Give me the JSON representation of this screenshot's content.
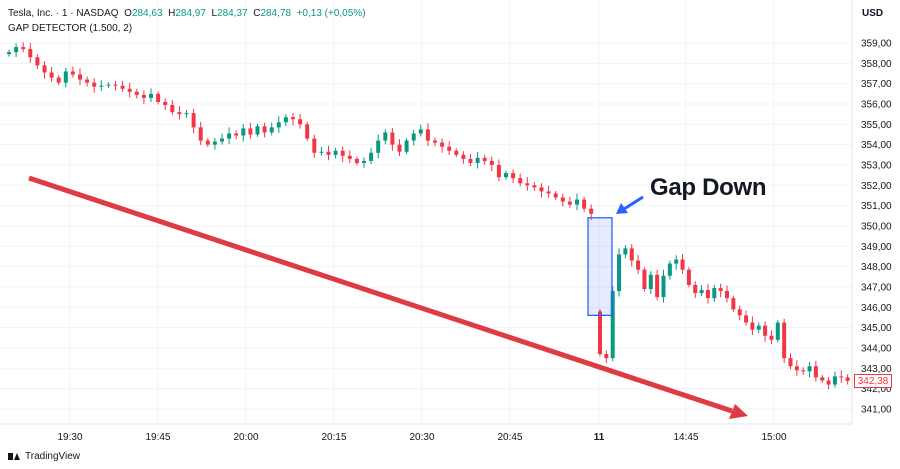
{
  "legend": {
    "symbol": "Tesla, Inc. · 1 · NASDAQ",
    "open_label": "O",
    "open": "284,63",
    "high_label": "H",
    "high": "284,97",
    "low_label": "L",
    "low": "284,37",
    "close_label": "C",
    "close": "284,78",
    "change": "+0,13 (+0,05%)",
    "indicator": "GAP DETECTOR (1.500, 2)"
  },
  "currency": "USD",
  "brand": "TradingView",
  "annotation": "Gap Down",
  "last_price_label": "342,38",
  "colors": {
    "up": "#089981",
    "down": "#f23645",
    "trend_arrow": "#e03a43",
    "gap_box": "#2962ff",
    "callout_arrow": "#2962ff"
  },
  "chart_data": {
    "type": "candlestick",
    "y_ticks": [
      "359,00",
      "358,00",
      "357,00",
      "356,00",
      "355,00",
      "354,00",
      "353,00",
      "352,00",
      "351,00",
      "350,00",
      "349,00",
      "348,00",
      "347,00",
      "346,00",
      "345,00",
      "344,00",
      "343,00",
      "342,00",
      "341,00"
    ],
    "y_range": [
      340.4,
      360.2
    ],
    "x_ticks": [
      "19:30",
      "19:45",
      "20:00",
      "20:15",
      "20:30",
      "20:45",
      "11",
      "14:45",
      "15:00"
    ],
    "x_tick_bold": [
      false,
      false,
      false,
      false,
      false,
      false,
      true,
      false,
      false
    ],
    "session1_closes": [
      358.55,
      358.8,
      358.7,
      358.3,
      357.9,
      357.55,
      357.3,
      357.05,
      357.6,
      357.45,
      357.2,
      357.05,
      356.85,
      356.9,
      356.95,
      356.9,
      356.75,
      356.6,
      356.45,
      356.3,
      356.5,
      356.1,
      355.95,
      355.6,
      355.5,
      355.55,
      354.85,
      354.2,
      354.0,
      354.15,
      354.3,
      354.55,
      354.45,
      354.8,
      354.5,
      354.9,
      354.6,
      354.85,
      355.1,
      355.35,
      355.25,
      355.0,
      354.3,
      353.6,
      353.65,
      353.5,
      353.7,
      353.45,
      353.3,
      353.1,
      353.2,
      353.6,
      354.2,
      354.6,
      354.0,
      353.65,
      354.2,
      354.55,
      354.75,
      354.2,
      354.1,
      353.9,
      353.7,
      353.5,
      353.3,
      353.1,
      353.35,
      353.2,
      353.0,
      352.4,
      352.6,
      352.35,
      352.1,
      352.0,
      351.9,
      351.7,
      351.6,
      351.4,
      351.2,
      351.05,
      351.3,
      350.85,
      350.6
    ],
    "session2_closes": [
      343.7,
      343.5,
      346.8,
      348.6,
      348.9,
      348.3,
      347.85,
      346.9,
      347.6,
      346.5,
      347.55,
      348.15,
      348.35,
      347.85,
      347.1,
      346.7,
      346.85,
      346.45,
      346.95,
      346.8,
      346.45,
      345.9,
      345.6,
      345.25,
      344.9,
      345.1,
      344.6,
      344.4,
      345.25,
      343.5,
      343.1,
      342.9,
      342.85,
      343.1,
      342.55,
      342.4,
      342.2,
      342.6,
      342.55,
      342.38
    ],
    "session1_open": 358.45,
    "session2_open": 345.8,
    "gap": {
      "from": 350.6,
      "to": 345.8,
      "direction": "down"
    },
    "trend": {
      "direction": "down",
      "from": {
        "time": "19:15",
        "price": 352.4
      },
      "to": {
        "time": "15:10",
        "price": 340.75
      }
    }
  }
}
